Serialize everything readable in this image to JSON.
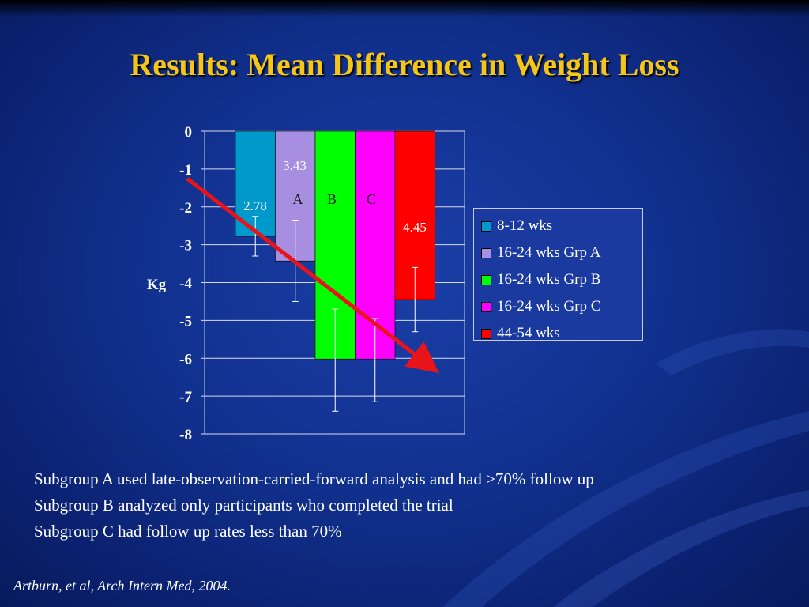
{
  "slide": {
    "title": "Results: Mean Difference in Weight Loss",
    "notes": [
      "Subgroup A used late-observation-carried-forward analysis and had >70% follow up",
      "Subgroup B analyzed only participants who completed the trial",
      "Subgroup C had follow up rates less than 70%"
    ],
    "citation": "Artburn, et al, Arch Intern Med, 2004."
  },
  "colors": {
    "title": "#f5c518",
    "background": "#11318f",
    "arrow": "#e8141a"
  },
  "chart_data": {
    "type": "bar",
    "title": "",
    "xlabel": "",
    "ylabel": "Kg",
    "ylim": [
      -8,
      0
    ],
    "yticks": [
      0,
      -1,
      -2,
      -3,
      -4,
      -5,
      -6,
      -7,
      -8
    ],
    "grid": true,
    "legend_position": "right",
    "series": [
      {
        "name": "8-12 wks",
        "value": -2.78,
        "error_low": -3.3,
        "error_high": -2.25,
        "color": "#0099cc",
        "data_label": "2.78",
        "inner_label": ""
      },
      {
        "name": "16-24 wks Grp A",
        "value": -3.43,
        "error_low": -4.5,
        "error_high": -2.35,
        "color": "#a78ee0",
        "data_label": "3.43",
        "inner_label": "A"
      },
      {
        "name": "16-24 wks Grp B",
        "value": -6.02,
        "error_low": -7.4,
        "error_high": -4.7,
        "color": "#00ff00",
        "data_label": "",
        "inner_label": "B"
      },
      {
        "name": "16-24 wks Grp C",
        "value": -6.02,
        "error_low": -7.15,
        "error_high": -4.95,
        "color": "#ff00ff",
        "data_label": "",
        "inner_label": "C"
      },
      {
        "name": "44-54 wks",
        "value": -4.45,
        "error_low": -5.3,
        "error_high": -3.6,
        "color": "#ff0000",
        "data_label": "4.45",
        "inner_label": ""
      }
    ]
  }
}
